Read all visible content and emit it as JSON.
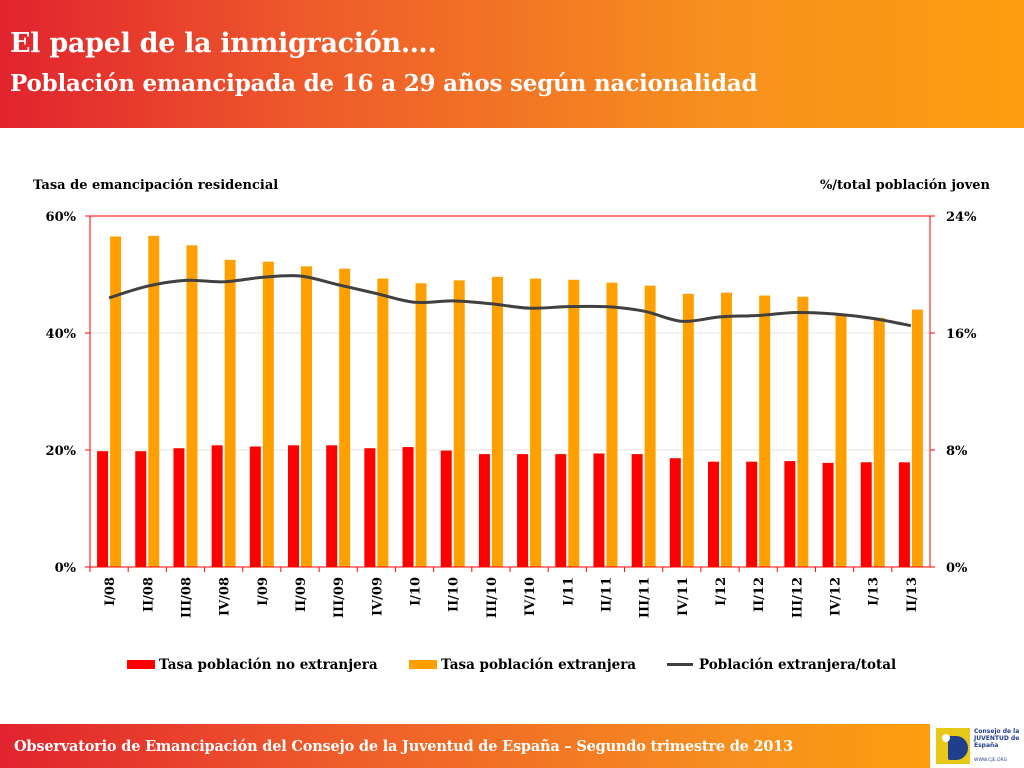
{
  "header": {
    "title": "El papel de la inmigración….",
    "subtitle": "Población emancipada de 16 a 29 años según nacionalidad"
  },
  "footer": {
    "text": "Observatorio de Emancipación del Consejo de la Juventud de España – Segundo trimestre de 2013",
    "logo_text": "Consejo de la JUVENTUD de España",
    "logo_url": "WWW.CJE.ORG"
  },
  "colors": {
    "series_red": "#ff0000",
    "series_orange": "#ffa000",
    "line": "#404040",
    "plot_border": "#ff0000"
  },
  "chart_data": {
    "type": "bar",
    "left_axis_title": "Tasa de emancipación residencial",
    "right_axis_title": "%/total población joven",
    "left_ticks": [
      "0%",
      "20%",
      "40%",
      "60%"
    ],
    "right_ticks": [
      "0%",
      "8%",
      "16%",
      "24%"
    ],
    "ylim_left": [
      0,
      60
    ],
    "ylim_right": [
      0,
      24
    ],
    "categories": [
      "I/08",
      "II/08",
      "III/08",
      "IV/08",
      "I/09",
      "II/09",
      "III/09",
      "IV/09",
      "I/10",
      "II/10",
      "III/10",
      "IV/10",
      "I/11",
      "II/11",
      "III/11",
      "IV/11",
      "I/12",
      "II/12",
      "III/12",
      "IV/12",
      "I/13",
      "II/13"
    ],
    "series": [
      {
        "name": "Tasa población no extranjera",
        "kind": "bar",
        "axis": "left",
        "values": [
          19.8,
          19.8,
          20.3,
          20.8,
          20.6,
          20.8,
          20.8,
          20.3,
          20.5,
          19.9,
          19.3,
          19.3,
          19.3,
          19.4,
          19.3,
          18.6,
          18.0,
          18.0,
          18.1,
          17.8,
          17.9,
          17.9
        ]
      },
      {
        "name": "Tasa población extranjera",
        "kind": "bar",
        "axis": "left",
        "values": [
          56.5,
          56.6,
          55.0,
          52.5,
          52.2,
          51.4,
          51.0,
          49.3,
          48.5,
          49.0,
          49.6,
          49.3,
          49.1,
          48.6,
          48.1,
          46.7,
          46.9,
          46.4,
          46.2,
          43.0,
          42.6,
          44.0
        ]
      },
      {
        "name": "Población extranjera/total",
        "kind": "line",
        "axis": "right",
        "values": [
          18.4,
          19.2,
          19.6,
          19.5,
          19.8,
          19.9,
          19.3,
          18.7,
          18.1,
          18.2,
          18.0,
          17.7,
          17.8,
          17.8,
          17.5,
          16.8,
          17.1,
          17.2,
          17.4,
          17.3,
          17.0,
          16.5
        ]
      }
    ],
    "legend_position": "bottom",
    "grid": true
  }
}
